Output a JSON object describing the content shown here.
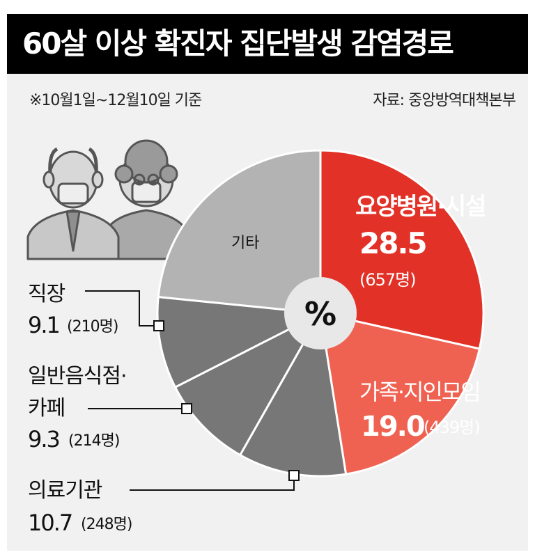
{
  "title": "60살 이상 확진자 집단발생 감염경로",
  "period_note": "※10월1일~12월10일 기준",
  "source_note": "자료: 중앙방역대책본부",
  "colors": {
    "nursing": "#e23228",
    "family": "#ef6252",
    "dark_slices": "#777777",
    "etc": "#b3b3b3",
    "center": "#e8e8e8",
    "text_white": "#ffffff",
    "text_dark": "#111111"
  },
  "chart_data": {
    "type": "pie",
    "unit": "%",
    "center_label": "%",
    "slices": [
      {
        "name": "요양병원·시설",
        "value": 28.5,
        "count": "(657명)",
        "color": "#e23228"
      },
      {
        "name": "가족·지인모임",
        "value": 19.0,
        "count": "(439명)",
        "color": "#ef6252"
      },
      {
        "name": "의료기관",
        "value": 10.7,
        "count": "(248명)",
        "color": "#777777"
      },
      {
        "name": "일반음식점·카페",
        "value": 9.3,
        "count": "(214명)",
        "color": "#777777"
      },
      {
        "name": "직장",
        "value": 9.1,
        "count": "(210명)",
        "color": "#777777"
      },
      {
        "name": "기타",
        "value": 23.4,
        "count": "",
        "color": "#b3b3b3"
      }
    ],
    "labels": {
      "nursing": {
        "name": "요양병원·시설",
        "value": "28.5",
        "count": "(657명)"
      },
      "family": {
        "name": "가족·지인모임",
        "value": "19.0",
        "count": "(439명)"
      },
      "medical": {
        "name": "의료기관",
        "value": "10.7",
        "count": "(248명)"
      },
      "restaurant": {
        "name_line1": "일반음식점·",
        "name_line2": "카페",
        "value": "9.3",
        "count": "(214명)"
      },
      "workplace": {
        "name": "직장",
        "value": "9.1",
        "count": "(210명)"
      },
      "etc": {
        "name": "기타"
      }
    }
  }
}
